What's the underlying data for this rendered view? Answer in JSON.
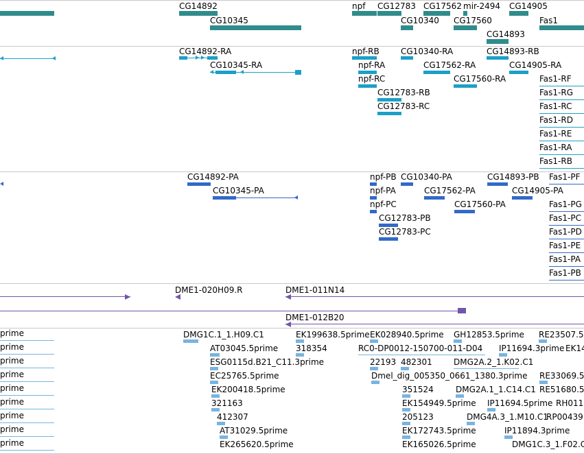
{
  "colors": {
    "gene": "#308c8c",
    "transcript": "#1ba0c8",
    "protein": "#3369c8",
    "clone": "#7255a8",
    "est": "#78b4e0",
    "separator": "#c8c8c8"
  },
  "gene_track": {
    "labels": [
      "CG14892",
      "CG10345",
      "npf",
      "CG12783",
      "CG17562",
      "mir-2494",
      "CG14905",
      "CG10340",
      "CG17560",
      "CG14893",
      "Fas1"
    ]
  },
  "transcript_track": {
    "labels": [
      "CG14892-RA",
      "CG10345-RA",
      "npf-RB",
      "npf-RA",
      "npf-RC",
      "CG10340-RA",
      "CG14893-RB",
      "CG17562-RA",
      "CG14905-RA",
      "CG17560-RA",
      "CG12783-RB",
      "CG12783-RC",
      "Fas1-RF",
      "Fas1-RG",
      "Fas1-RC",
      "Fas1-RD",
      "Fas1-RE",
      "Fas1-RA",
      "Fas1-RB"
    ]
  },
  "protein_track": {
    "labels": [
      "CG14892-PA",
      "CG10345-PA",
      "npf-PB",
      "npf-PA",
      "npf-PC",
      "CG10340-PA",
      "CG14893-PB",
      "CG17562-PA",
      "CG14905-PA",
      "CG17560-PA",
      "CG12783-PB",
      "CG12783-PC",
      "Fas1-PF",
      "Fas1-PG",
      "Fas1-PC",
      "Fas1-PD",
      "Fas1-PE",
      "Fas1-PA",
      "Fas1-PB"
    ]
  },
  "clone_track": {
    "labels": [
      "DME1-020H09.R",
      "DME1-011N14",
      "DME1-012B20"
    ]
  },
  "est_track": {
    "labels": [
      "prime",
      "prime",
      "prime",
      "prime",
      "prime",
      "prime",
      "prime",
      "prime",
      "prime",
      "DMG1C.1_1.H09.C1",
      "EK199638.5prime",
      "EK028940.5prime",
      "GH12853.5prime",
      "RE23507.5",
      "AT03045.5prime",
      "318354",
      "RC0-DP0012-150700-011-D04",
      "IP11694.3prime",
      "EK14",
      "ESG0115d.B21_C11.3prime",
      "22193",
      "482301",
      "DMG2A.2_1.K02.C1",
      "EC25765.5prime",
      "Dmel_dig_005350_0661_1380.3prime",
      "RE33069.5",
      "EK200418.5prime",
      "351524",
      "DMG2A.1_1.C14.C1",
      "RE51680.5",
      "321163",
      "EK154949.5prime",
      "IP11694.5prime",
      "RH011",
      "412307",
      "205123",
      "DMG4A.3_1.M10.C1",
      "RP00439",
      "AT31029.5prime",
      "EK172743.5prime",
      "IP11894.3prime",
      "EK265620.5prime",
      "EK165026.5prime",
      "DMG1C.3_1.F02.C"
    ]
  }
}
